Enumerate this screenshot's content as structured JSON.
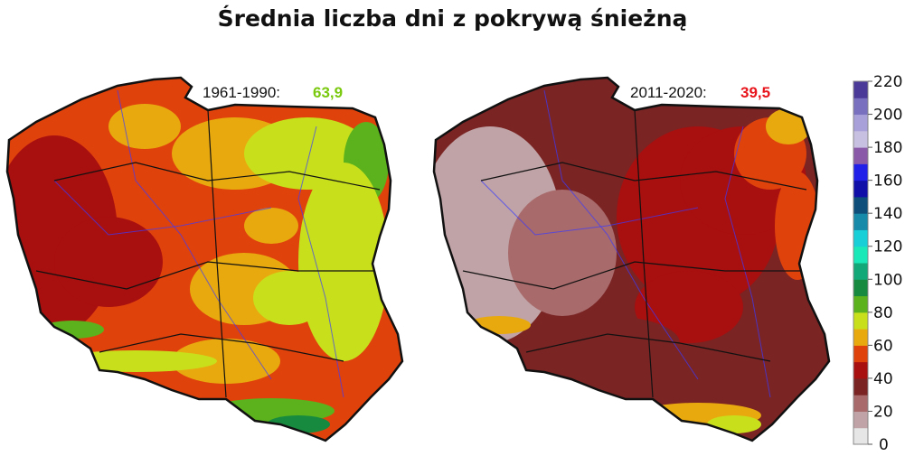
{
  "title": "Średnia liczba dni z pokrywą śnieżną",
  "maps": [
    {
      "period": "1961-1990:",
      "value": "63,9",
      "value_color": "#7ac90e"
    },
    {
      "period": "2011-2020:",
      "value": "39,5",
      "value_color": "#e8141b"
    }
  ],
  "legend": {
    "ticks": [
      "0",
      "20",
      "40",
      "60",
      "80",
      "100",
      "120",
      "140",
      "160",
      "180",
      "200",
      "220"
    ],
    "range": [
      0,
      220
    ],
    "bin_colors": [
      "#e6e6e6",
      "#bfa3a6",
      "#a86a6b",
      "#7a2424",
      "#a80f0f",
      "#e0420c",
      "#e8a90f",
      "#c8e01c",
      "#5cb21c",
      "#178a3f",
      "#13a877",
      "#1ae8b8",
      "#18cfd8",
      "#168aa8",
      "#0d4f7a",
      "#1010a8",
      "#2020e8",
      "#8a5aa8",
      "#c8c0e0",
      "#a8a0d8",
      "#7a70c0",
      "#4c3a98"
    ]
  },
  "colors": {
    "border": "#111111",
    "rivers": "#3a3aff"
  }
}
